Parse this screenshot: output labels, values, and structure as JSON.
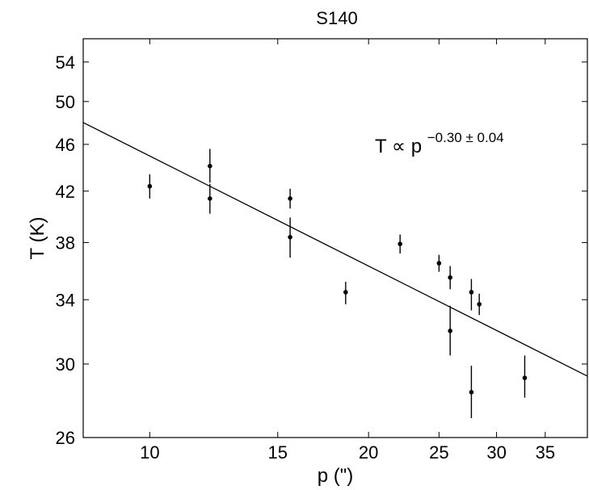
{
  "chart_data": {
    "type": "scatter",
    "title": "S140",
    "xlabel": "p (\")",
    "ylabel": "T (K)",
    "xscale": "log",
    "yscale": "log",
    "xlim": [
      8.1,
      40.0
    ],
    "ylim": [
      26,
      56.5
    ],
    "xticks": [
      10,
      15,
      20,
      25,
      30,
      35
    ],
    "yticks": [
      26,
      30,
      34,
      38,
      42,
      46,
      50,
      54
    ],
    "grid": false,
    "points": [
      {
        "x": 10.0,
        "y": 42.4,
        "yerr_low": 41.4,
        "yerr_high": 43.4
      },
      {
        "x": 12.1,
        "y": 44.1,
        "yerr_low": 42.7,
        "yerr_high": 45.6
      },
      {
        "x": 12.1,
        "y": 41.4,
        "yerr_low": 40.2,
        "yerr_high": 42.6
      },
      {
        "x": 15.6,
        "y": 41.4,
        "yerr_low": 40.6,
        "yerr_high": 42.2
      },
      {
        "x": 15.6,
        "y": 38.4,
        "yerr_low": 36.9,
        "yerr_high": 39.9
      },
      {
        "x": 18.6,
        "y": 34.5,
        "yerr_low": 33.7,
        "yerr_high": 35.2
      },
      {
        "x": 22.1,
        "y": 37.9,
        "yerr_low": 37.2,
        "yerr_high": 38.6
      },
      {
        "x": 25.0,
        "y": 36.5,
        "yerr_low": 35.9,
        "yerr_high": 37.1
      },
      {
        "x": 25.9,
        "y": 35.5,
        "yerr_low": 34.7,
        "yerr_high": 36.3
      },
      {
        "x": 25.9,
        "y": 32.0,
        "yerr_low": 30.5,
        "yerr_high": 33.6
      },
      {
        "x": 27.7,
        "y": 34.5,
        "yerr_low": 33.3,
        "yerr_high": 35.4
      },
      {
        "x": 27.7,
        "y": 28.4,
        "yerr_low": 27.0,
        "yerr_high": 29.9
      },
      {
        "x": 28.4,
        "y": 33.7,
        "yerr_low": 33.0,
        "yerr_high": 34.4
      },
      {
        "x": 32.8,
        "y": 29.2,
        "yerr_low": 28.1,
        "yerr_high": 30.5
      }
    ],
    "fit_line": {
      "points": [
        [
          8.1,
          48.0
        ],
        [
          40.0,
          29.3
        ]
      ]
    },
    "annotation": {
      "main": "T ∝ p",
      "superscript": "−0.30 ± 0.04"
    }
  }
}
